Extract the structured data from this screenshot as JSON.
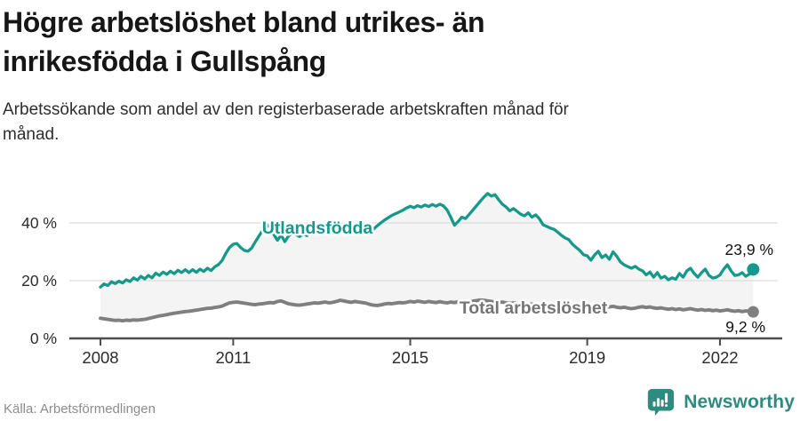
{
  "header": {
    "title_line1": "Högre arbetslöshet bland utrikes- än",
    "title_line2": "inrikesfödda i Gullspång",
    "subtitle_line1": "Arbetssökande som andel av den registerbaserade arbetskraften månad för",
    "subtitle_line2": "månad."
  },
  "chart_data": {
    "type": "line",
    "x_start_year": 2008,
    "x_step_months": 1,
    "x_ticks": [
      2008,
      2011,
      2015,
      2019,
      2022
    ],
    "y_ticks": [
      {
        "value": 0,
        "label": "0 %"
      },
      {
        "value": 20,
        "label": "20 %"
      },
      {
        "value": 40,
        "label": "40 %"
      }
    ],
    "ylim": [
      0,
      55
    ],
    "grid": "horizontal",
    "band_fill_between_series": true,
    "band_fill_color": "#f4f4f4",
    "gridline_color": "#dcdcdc",
    "axis_color": "#4d4d4d",
    "tick_label_color": "#2b2b2b",
    "end_label_color": "#111111",
    "series": [
      {
        "name": "Utlandsfödda",
        "color": "#16998a",
        "end_label": "23,9 %",
        "end_value": 23.9,
        "values": [
          17.8,
          18.9,
          18.3,
          19.6,
          19.0,
          19.8,
          19.2,
          20.3,
          19.7,
          21.0,
          20.2,
          21.5,
          20.6,
          21.8,
          21.0,
          22.6,
          21.8,
          23.0,
          22.2,
          23.3,
          22.4,
          23.6,
          22.8,
          23.8,
          22.8,
          23.8,
          22.9,
          24.0,
          23.2,
          24.3,
          23.5,
          24.8,
          25.6,
          27.0,
          29.5,
          31.5,
          32.6,
          32.9,
          31.5,
          30.5,
          30.2,
          31.3,
          33.5,
          35.5,
          37.5,
          39.5,
          38.5,
          36.0,
          34.0,
          35.8,
          33.5,
          35.5,
          36.5,
          36.0,
          35.3,
          36.2,
          35.6,
          36.6,
          36.0,
          37.0,
          36.3,
          37.2,
          36.5,
          37.5,
          36.8,
          37.8,
          37.0,
          38.0,
          37.3,
          38.3,
          37.6,
          38.2,
          37.5,
          38.5,
          37.8,
          39.0,
          40.0,
          41.0,
          41.8,
          42.6,
          43.2,
          43.8,
          44.4,
          45.2,
          45.8,
          45.3,
          46.0,
          45.5,
          46.2,
          45.7,
          46.4,
          45.8,
          46.5,
          45.9,
          44.5,
          42.0,
          39.2,
          40.5,
          42.0,
          41.5,
          43.0,
          44.5,
          46.0,
          47.5,
          49.0,
          50.2,
          49.3,
          49.8,
          48.0,
          46.5,
          45.5,
          44.2,
          45.0,
          44.0,
          43.0,
          42.5,
          43.5,
          42.0,
          42.8,
          41.5,
          39.4,
          38.8,
          38.2,
          37.8,
          36.8,
          35.7,
          34.8,
          34.2,
          32.6,
          31.5,
          30.5,
          29.0,
          28.6,
          27.1,
          28.9,
          30.2,
          28.0,
          28.9,
          27.4,
          30.0,
          28.5,
          26.5,
          25.5,
          24.9,
          24.3,
          25.0,
          24.0,
          23.4,
          22.0,
          23.0,
          21.2,
          22.8,
          20.9,
          21.5,
          20.3,
          21.0,
          20.5,
          22.5,
          21.2,
          23.4,
          24.3,
          22.5,
          21.2,
          22.8,
          24.0,
          21.8,
          20.9,
          21.2,
          22.0,
          24.0,
          25.5,
          23.4,
          21.8,
          22.0,
          22.8,
          21.5,
          22.3,
          23.9
        ]
      },
      {
        "name": "Total arbetslöshet",
        "color": "#7f7f7f",
        "end_label": "9,2 %",
        "end_value": 9.2,
        "values": [
          7.0,
          6.8,
          6.6,
          6.4,
          6.2,
          6.3,
          6.1,
          6.3,
          6.2,
          6.4,
          6.3,
          6.5,
          6.6,
          6.9,
          7.2,
          7.5,
          7.8,
          8.0,
          8.2,
          8.5,
          8.7,
          8.9,
          9.1,
          9.3,
          9.4,
          9.6,
          9.8,
          10.0,
          10.2,
          10.4,
          10.5,
          10.7,
          10.9,
          11.2,
          11.8,
          12.3,
          12.5,
          12.6,
          12.4,
          12.2,
          12.0,
          11.8,
          11.7,
          11.9,
          12.0,
          12.2,
          12.4,
          12.3,
          12.8,
          13.0,
          12.5,
          12.0,
          11.8,
          11.6,
          11.5,
          11.7,
          11.9,
          12.1,
          12.3,
          12.2,
          12.4,
          12.6,
          12.3,
          12.5,
          12.8,
          13.2,
          13.0,
          12.7,
          12.5,
          12.8,
          12.6,
          12.4,
          12.2,
          11.8,
          11.5,
          11.4,
          11.6,
          11.9,
          12.1,
          12.0,
          12.2,
          12.4,
          12.3,
          12.5,
          12.8,
          12.6,
          12.9,
          12.7,
          12.5,
          12.8,
          12.6,
          12.4,
          12.7,
          12.5,
          12.3,
          12.6,
          12.4,
          12.7,
          12.5,
          12.8,
          12.6,
          12.9,
          13.1,
          13.3,
          13.2,
          13.0,
          12.8,
          12.6,
          12.4,
          12.6,
          12.3,
          12.1,
          12.3,
          12.0,
          11.8,
          12.0,
          11.7,
          11.9,
          11.6,
          11.4,
          11.2,
          11.4,
          11.1,
          11.3,
          11.0,
          10.8,
          11.0,
          10.7,
          10.9,
          10.6,
          10.8,
          10.5,
          11.0,
          10.8,
          11.1,
          11.3,
          11.0,
          11.2,
          10.9,
          11.1,
          10.8,
          10.6,
          10.8,
          10.5,
          10.3,
          10.5,
          10.8,
          11.0,
          10.7,
          10.9,
          10.6,
          10.4,
          10.6,
          10.3,
          10.1,
          10.3,
          10.0,
          10.2,
          9.9,
          10.1,
          10.3,
          10.0,
          9.8,
          10.0,
          9.7,
          9.9,
          9.6,
          9.8,
          9.5,
          9.7,
          9.9,
          9.6,
          9.4,
          9.6,
          9.3,
          9.5,
          9.4,
          9.2
        ]
      }
    ],
    "title": "Högre arbetslöshet bland utrikes- än inrikesfödda i Gullspång",
    "xlabel": "",
    "ylabel": ""
  },
  "footer": {
    "source": "Källa: Arbetsförmedlingen",
    "logo_text": "Newsworthy"
  },
  "colors": {
    "accent_teal": "#16998a",
    "series_gray": "#7f7f7f",
    "logo_teal": "#2f8a80"
  }
}
